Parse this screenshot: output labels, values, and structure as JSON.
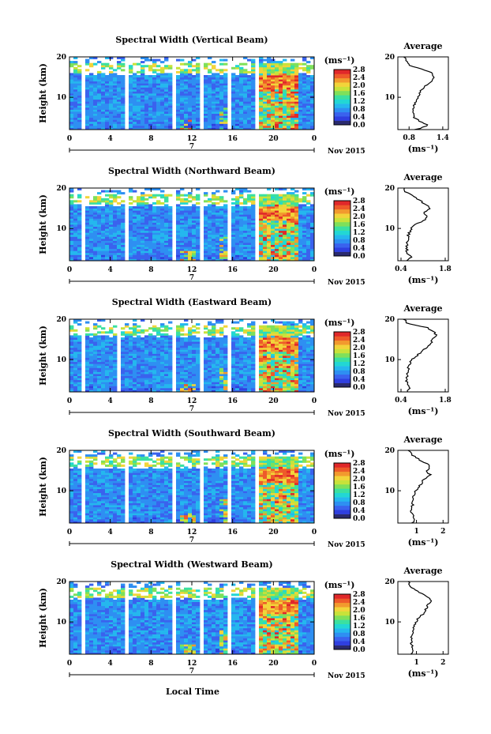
{
  "figure": {
    "x_axis_label": "Local Time",
    "colors": {
      "colormap": [
        "#2a2a6e",
        "#2f3fe0",
        "#3a62ee",
        "#2e8ff2",
        "#25b7ee",
        "#22d7d4",
        "#3be0a0",
        "#7fe05a",
        "#c8e23a",
        "#f2d43a",
        "#f29a2e",
        "#ee5a2a",
        "#e0282a"
      ]
    }
  },
  "chart_data": [
    {
      "type": "heatmap",
      "title": "Spectral Width (Vertical Beam)",
      "ylabel": "Height (km)",
      "yticks": [
        "10",
        "20"
      ],
      "ylim": [
        2,
        20
      ],
      "xticks": [
        "0",
        "4",
        "8",
        "12",
        "16",
        "20",
        "0"
      ],
      "xlim": [
        0,
        24
      ],
      "date_label": "7",
      "date_suffix": "Nov 2015",
      "colorbar": {
        "unit": "(ms⁻¹)",
        "ticks": [
          "0.0",
          "0.4",
          "0.8",
          "1.2",
          "1.6",
          "2.0",
          "2.4",
          "2.8"
        ],
        "range": [
          0,
          2.8
        ]
      },
      "gaps": [
        [
          1.2,
          1.6
        ],
        [
          5.6,
          6.0
        ],
        [
          10.0,
          10.6
        ],
        [
          12.6,
          13.2
        ],
        [
          15.6,
          15.9
        ],
        [
          18.3,
          18.7
        ],
        [
          22.3,
          22.6
        ]
      ],
      "average": {
        "title": "Average",
        "xlabel": "(ms⁻¹)",
        "xticks": [
          "0.8",
          "1.4"
        ],
        "xlim": [
          0.6,
          1.5
        ],
        "heights": [
          2,
          3,
          4,
          5,
          6,
          7,
          8,
          9,
          10,
          11,
          12,
          13,
          14,
          15,
          16,
          17,
          18,
          19,
          20
        ],
        "values": [
          0.92,
          1.15,
          0.98,
          0.9,
          0.88,
          0.86,
          0.88,
          0.92,
          0.96,
          0.98,
          1.02,
          1.12,
          1.22,
          1.25,
          1.2,
          1.02,
          0.8,
          0.75,
          0.72
        ]
      }
    },
    {
      "type": "heatmap",
      "title": "Spectral Width (Northward Beam)",
      "ylabel": "Height (km)",
      "yticks": [
        "10",
        "20"
      ],
      "ylim": [
        2,
        20
      ],
      "xticks": [
        "0",
        "4",
        "8",
        "12",
        "16",
        "20",
        "0"
      ],
      "xlim": [
        0,
        24
      ],
      "date_label": "7",
      "date_suffix": "Nov 2015",
      "colorbar": {
        "unit": "(ms⁻¹)",
        "ticks": [
          "0.0",
          "0.4",
          "0.8",
          "1.2",
          "1.6",
          "2.0",
          "2.4",
          "2.8"
        ],
        "range": [
          0,
          2.8
        ]
      },
      "gaps": [
        [
          1.2,
          1.6
        ],
        [
          5.6,
          6.0
        ],
        [
          10.0,
          10.6
        ],
        [
          12.6,
          13.2
        ],
        [
          15.6,
          15.9
        ],
        [
          18.3,
          18.7
        ],
        [
          22.3,
          22.6
        ]
      ],
      "average": {
        "title": "Average",
        "xlabel": "(ms⁻¹)",
        "xticks": [
          "0.4",
          "1.8"
        ],
        "xlim": [
          0.3,
          1.9
        ],
        "heights": [
          2,
          3,
          4,
          5,
          6,
          7,
          8,
          9,
          10,
          11,
          12,
          13,
          14,
          15,
          16,
          17,
          18,
          19,
          20
        ],
        "values": [
          0.62,
          0.72,
          0.6,
          0.58,
          0.58,
          0.6,
          0.62,
          0.66,
          0.72,
          0.85,
          1.15,
          1.25,
          1.1,
          1.35,
          1.15,
          1.0,
          0.8,
          0.55,
          0.5
        ]
      }
    },
    {
      "type": "heatmap",
      "title": "Spectral Width (Eastward Beam)",
      "ylabel": "Height (km)",
      "yticks": [
        "10",
        "20"
      ],
      "ylim": [
        2,
        20
      ],
      "xticks": [
        "0",
        "4",
        "8",
        "12",
        "16",
        "20",
        "0"
      ],
      "xlim": [
        0,
        24
      ],
      "date_label": "7",
      "date_suffix": "Nov 2015",
      "colorbar": {
        "unit": "(ms⁻¹)",
        "ticks": [
          "0.0",
          "0.4",
          "0.8",
          "1.2",
          "1.6",
          "2.0",
          "2.4",
          "2.8"
        ],
        "range": [
          0,
          2.8
        ]
      },
      "gaps": [
        [
          1.2,
          1.6
        ],
        [
          4.8,
          5.1
        ],
        [
          10.0,
          10.6
        ],
        [
          12.6,
          13.2
        ],
        [
          15.6,
          15.9
        ],
        [
          18.3,
          18.7
        ],
        [
          22.3,
          22.6
        ]
      ],
      "average": {
        "title": "Average",
        "xlabel": "(ms⁻¹)",
        "xticks": [
          "0.4",
          "1.8"
        ],
        "xlim": [
          0.3,
          1.9
        ],
        "heights": [
          2,
          3,
          4,
          5,
          6,
          7,
          8,
          9,
          10,
          11,
          12,
          13,
          14,
          15,
          16,
          17,
          18,
          19,
          20
        ],
        "values": [
          0.62,
          0.65,
          0.6,
          0.58,
          0.6,
          0.62,
          0.64,
          0.68,
          0.75,
          0.9,
          1.05,
          1.2,
          1.35,
          1.4,
          1.5,
          1.45,
          1.2,
          0.6,
          0.5
        ]
      }
    },
    {
      "type": "heatmap",
      "title": "Spectral Width (Southward Beam)",
      "ylabel": "Height (km)",
      "yticks": [
        "10",
        "20"
      ],
      "ylim": [
        2,
        20
      ],
      "xticks": [
        "0",
        "4",
        "8",
        "12",
        "16",
        "20",
        "0"
      ],
      "xlim": [
        0,
        24
      ],
      "date_label": "7",
      "date_suffix": "Nov 2015",
      "colorbar": {
        "unit": "(ms⁻¹)",
        "ticks": [
          "0.0",
          "0.4",
          "0.8",
          "1.2",
          "1.6",
          "2.0",
          "2.4",
          "2.8"
        ],
        "range": [
          0,
          2.8
        ]
      },
      "gaps": [
        [
          1.2,
          1.6
        ],
        [
          5.6,
          6.0
        ],
        [
          10.0,
          10.6
        ],
        [
          12.6,
          13.2
        ],
        [
          15.6,
          15.9
        ],
        [
          18.3,
          18.7
        ],
        [
          22.3,
          22.6
        ]
      ],
      "average": {
        "title": "Average",
        "xlabel": "(ms⁻¹)",
        "xticks": [
          "1",
          "2"
        ],
        "xlim": [
          0.3,
          2.2
        ],
        "heights": [
          2,
          3,
          4,
          5,
          6,
          7,
          8,
          9,
          10,
          11,
          12,
          13,
          14,
          15,
          16,
          17,
          18,
          19,
          20
        ],
        "values": [
          0.85,
          0.9,
          0.85,
          0.82,
          0.84,
          0.86,
          0.88,
          0.92,
          0.98,
          1.1,
          1.2,
          1.3,
          1.5,
          1.4,
          1.55,
          1.3,
          1.05,
          0.8,
          0.7
        ]
      }
    },
    {
      "type": "heatmap",
      "title": "Spectral Width (Westward Beam)",
      "ylabel": "Height (km)",
      "yticks": [
        "10",
        "20"
      ],
      "ylim": [
        2,
        20
      ],
      "xticks": [
        "0",
        "4",
        "8",
        "12",
        "16",
        "20",
        "0"
      ],
      "xlim": [
        0,
        24
      ],
      "date_label": "7",
      "date_suffix": "Nov 2015",
      "colorbar": {
        "unit": "(ms⁻¹)",
        "ticks": [
          "0.0",
          "0.4",
          "0.8",
          "1.2",
          "1.6",
          "2.0",
          "2.4",
          "2.8"
        ],
        "range": [
          0,
          2.8
        ]
      },
      "gaps": [
        [
          1.2,
          1.6
        ],
        [
          5.6,
          6.0
        ],
        [
          10.0,
          10.6
        ],
        [
          12.6,
          13.2
        ],
        [
          15.6,
          15.9
        ],
        [
          18.3,
          18.7
        ],
        [
          22.3,
          22.6
        ]
      ],
      "average": {
        "title": "Average",
        "xlabel": "(ms⁻¹)",
        "xticks": [
          "1",
          "2"
        ],
        "xlim": [
          0.3,
          2.2
        ],
        "heights": [
          2,
          3,
          4,
          5,
          6,
          7,
          8,
          9,
          10,
          11,
          12,
          13,
          14,
          15,
          16,
          17,
          18,
          19,
          20
        ],
        "values": [
          0.82,
          0.88,
          0.84,
          0.8,
          0.82,
          0.84,
          0.86,
          0.9,
          0.98,
          1.08,
          1.25,
          1.35,
          1.4,
          1.6,
          1.45,
          1.2,
          0.95,
          0.75,
          0.7
        ]
      }
    }
  ]
}
